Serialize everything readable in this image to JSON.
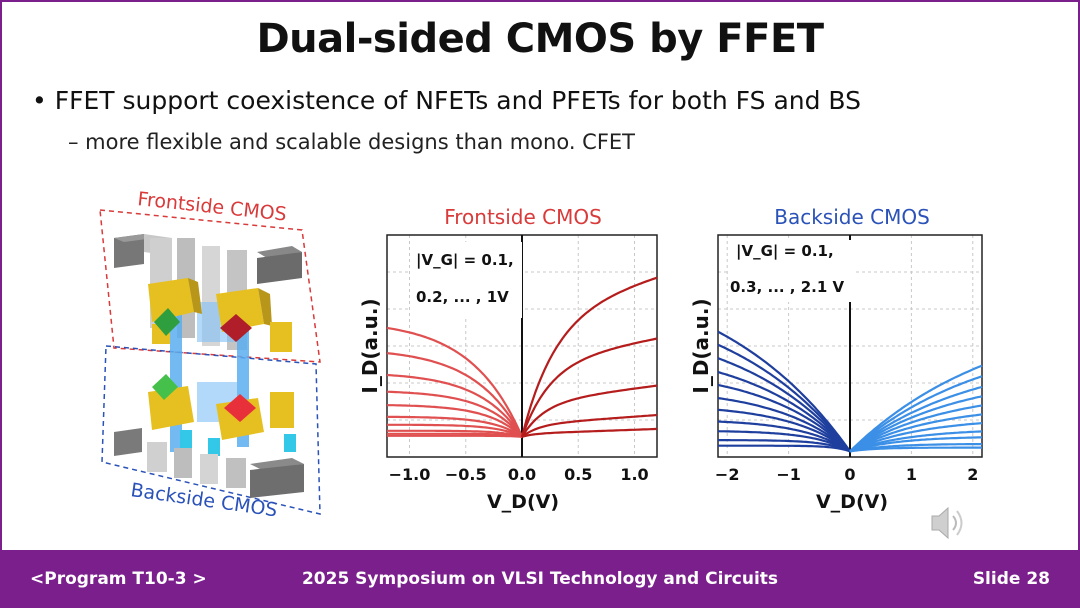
{
  "slide": {
    "title": "Dual-sided CMOS by FFET",
    "bullet": "• FFET support coexistence of NFETs and PFETs for both FS and BS",
    "subbullet": "– more flexible and scalable designs than mono. CFET"
  },
  "device": {
    "frontside_label": "Frontside CMOS",
    "backside_label": "Backside CMOS"
  },
  "footer": {
    "program": "<Program T10-3 >",
    "event": "2025 Symposium on VLSI Technology and Circuits",
    "slide_number": "Slide 28"
  },
  "colors": {
    "purple": "#7b1f8c",
    "frontside": "#d93a3a",
    "backside": "#2a52b8"
  },
  "icons": {
    "speaker": "speaker-icon"
  },
  "chart_data": [
    {
      "type": "line",
      "title": "Frontside CMOS",
      "ylabel": "I_D(a.u.)",
      "xlabel": "V_D(V)",
      "annotation_lines": [
        "|V_G| = 0.1,",
        "0.2, ... , 1V"
      ],
      "xticks": [
        "−1.0",
        "−0.5",
        "0.0",
        "0.5",
        "1.0"
      ],
      "xtick_values": [
        -1.0,
        -0.5,
        0.0,
        0.5,
        1.0
      ],
      "xlim": [
        -1.2,
        1.2
      ],
      "ylim": [
        -0.1,
        1.0
      ],
      "grid": true,
      "neg_color": "#e05050",
      "pos_color": "#b51c1c",
      "neg_sat": [
        0.58,
        0.44,
        0.32,
        0.23,
        0.16,
        0.1,
        0.06,
        0.03,
        0.015,
        0.005
      ],
      "neg_k": [
        0.45,
        0.42,
        0.38,
        0.34,
        0.3,
        0.26,
        0.22,
        0.18,
        0.14,
        0.1
      ],
      "pos_sat": [
        0.62,
        0.37,
        0.17,
        0.06,
        0.015
      ],
      "pos_k": [
        0.3,
        0.25,
        0.2,
        0.15,
        0.1
      ],
      "pos_slope": [
        0.15,
        0.1,
        0.07,
        0.04,
        0.02
      ]
    },
    {
      "type": "line",
      "title": "Backside CMOS",
      "ylabel": "I_D(a.u.)",
      "xlabel": "V_D(V)",
      "annotation_lines": [
        "|V_G| = 0.1,",
        "0.3, ... , 2.1 V"
      ],
      "xticks": [
        "−2",
        "−1",
        "0",
        "1",
        "2"
      ],
      "xtick_values": [
        -2,
        -1,
        0,
        1,
        2
      ],
      "xlim": [
        -2.15,
        2.15
      ],
      "ylim": [
        -0.03,
        1.15
      ],
      "grid": true,
      "neg_color": "#1f3f9e",
      "pos_color": "#3b8fe6",
      "neg_sat": [
        1.02,
        0.86,
        0.71,
        0.57,
        0.45,
        0.34,
        0.25,
        0.17,
        0.11,
        0.06,
        0.03
      ],
      "neg_k": [
        2.2,
        2.0,
        1.8,
        1.6,
        1.4,
        1.2,
        1.0,
        0.8,
        0.6,
        0.4,
        0.25
      ],
      "pos_sat": [
        0.77,
        0.64,
        0.52,
        0.42,
        0.33,
        0.25,
        0.18,
        0.12,
        0.08,
        0.04,
        0.02
      ],
      "pos_k": [
        2.4,
        2.2,
        2.0,
        1.8,
        1.6,
        1.4,
        1.2,
        1.0,
        0.8,
        0.6,
        0.4
      ],
      "pos_slope": [
        0,
        0,
        0,
        0,
        0,
        0,
        0,
        0,
        0,
        0,
        0
      ]
    }
  ]
}
